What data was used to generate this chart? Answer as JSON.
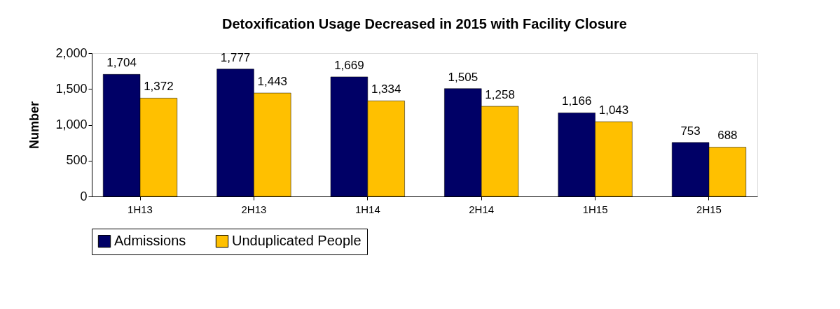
{
  "chart_data": {
    "type": "bar",
    "title": "Detoxification  Usage Decreased  in 2015 with Facility Closure",
    "ylabel": "Number",
    "categories": [
      "1H13",
      "2H13",
      "1H14",
      "2H14",
      "1H15",
      "2H15"
    ],
    "series": [
      {
        "name": "Admissions",
        "color": "#000066",
        "values": [
          1704,
          1777,
          1669,
          1505,
          1166,
          753
        ],
        "value_labels": [
          "1,704",
          "1,777",
          "1,669",
          "1,505",
          "1,166",
          "753"
        ]
      },
      {
        "name": "Unduplicated People",
        "color": "#ffc000",
        "values": [
          1372,
          1443,
          1334,
          1258,
          1043,
          688
        ],
        "value_labels": [
          "1,372",
          "1,443",
          "1,334",
          "1,258",
          "1,043",
          "688"
        ]
      }
    ],
    "ylim": [
      0,
      2000
    ],
    "yticks": [
      0,
      500,
      {
        "value": 1000,
        "label": "1,000"
      },
      {
        "value": 1500,
        "label": "1,500"
      },
      {
        "value": 2000,
        "label": "2,000"
      }
    ],
    "grid": false,
    "legend": "bottom"
  }
}
